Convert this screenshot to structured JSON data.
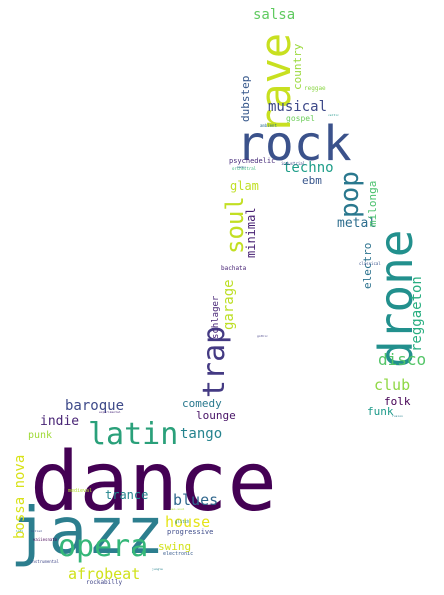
{
  "words": [
    {
      "text": "dance",
      "color": "#440154"
    },
    {
      "text": "jazz",
      "color": "#2c7e8e"
    },
    {
      "text": "rock",
      "color": "#3b528b"
    },
    {
      "text": "rave",
      "color": "#c8e020"
    },
    {
      "text": "drone",
      "color": "#22908d"
    },
    {
      "text": "opera",
      "color": "#35b779"
    },
    {
      "text": "latin",
      "color": "#2aa07a"
    },
    {
      "text": "trap",
      "color": "#443a83"
    },
    {
      "text": "soul",
      "color": "#c2df23"
    },
    {
      "text": "pop",
      "color": "#2a788e"
    },
    {
      "text": "disco",
      "color": "#54c568"
    },
    {
      "text": "club",
      "color": "#8fd744"
    },
    {
      "text": "afrobeat",
      "color": "#d0e11c"
    },
    {
      "text": "baroque",
      "color": "#3e4a89"
    },
    {
      "text": "blues",
      "color": "#31688e"
    },
    {
      "text": "house",
      "color": "#e5e419"
    },
    {
      "text": "bossa nova",
      "color": "#d8e219"
    },
    {
      "text": "reggaeton",
      "color": "#28ae80"
    },
    {
      "text": "tango",
      "color": "#25838e"
    },
    {
      "text": "techno",
      "color": "#1f9e89"
    },
    {
      "text": "indie",
      "color": "#482475"
    },
    {
      "text": "salsa",
      "color": "#60ca60"
    },
    {
      "text": "musical",
      "color": "#3e4989"
    },
    {
      "text": "metal",
      "color": "#2e6e8e"
    },
    {
      "text": "garage",
      "color": "#bddf26"
    },
    {
      "text": "minimal",
      "color": "#482173"
    },
    {
      "text": "glam",
      "color": "#c0df25"
    },
    {
      "text": "electro",
      "color": "#2c728e"
    },
    {
      "text": "comedy",
      "color": "#29798e"
    },
    {
      "text": "trance",
      "color": "#24868e"
    },
    {
      "text": "swing",
      "color": "#d2e21b"
    },
    {
      "text": "folk",
      "color": "#440154"
    },
    {
      "text": "milonga",
      "color": "#4ac16d"
    },
    {
      "text": "country",
      "color": "#9bd93c"
    },
    {
      "text": "dubstep",
      "color": "#38598c"
    },
    {
      "text": "lounge",
      "color": "#481467"
    },
    {
      "text": "funk",
      "color": "#1e9b8a"
    },
    {
      "text": "ebm",
      "color": "#39568c"
    },
    {
      "text": "schlager",
      "color": "#482677"
    },
    {
      "text": "punk",
      "color": "#a0da39"
    },
    {
      "text": "gospel",
      "color": "#6ccd5a"
    },
    {
      "text": "psychedelic",
      "color": "#472c7a"
    },
    {
      "text": "bachata",
      "color": "#482475"
    },
    {
      "text": "progressive",
      "color": "#3e4c8a"
    },
    {
      "text": "rockabilly",
      "color": "#404688"
    },
    {
      "text": "medieval",
      "color": "#b2dd2d"
    },
    {
      "text": "electronic",
      "color": "#375a8c"
    },
    {
      "text": "industrial",
      "color": "#3f4889"
    },
    {
      "text": "classical",
      "color": "#3a548c"
    },
    {
      "text": "reggae",
      "color": "#8bd646"
    },
    {
      "text": "ambient",
      "color": "#2d708e"
    },
    {
      "text": "vaiiesnato",
      "color": "#440154"
    },
    {
      "text": "instrumental",
      "color": "#3f4788"
    },
    {
      "text": "orchestral",
      "color": "#35b779"
    },
    {
      "text": "experimental",
      "color": "#482878"
    },
    {
      "text": "glitch",
      "color": "#238a8d"
    },
    {
      "text": "jungle",
      "color": "#26828e"
    },
    {
      "text": "celtic",
      "color": "#1f968b"
    },
    {
      "text": "mambo",
      "color": "#2e6f8e"
    },
    {
      "text": "fusion",
      "color": "#27808e"
    },
    {
      "text": "ballad",
      "color": "#3b518b"
    },
    {
      "text": "neo-soul",
      "color": "#a5db36"
    },
    {
      "text": "lofi",
      "color": "#1f988b"
    },
    {
      "text": "gothic",
      "color": "#433e85"
    }
  ]
}
